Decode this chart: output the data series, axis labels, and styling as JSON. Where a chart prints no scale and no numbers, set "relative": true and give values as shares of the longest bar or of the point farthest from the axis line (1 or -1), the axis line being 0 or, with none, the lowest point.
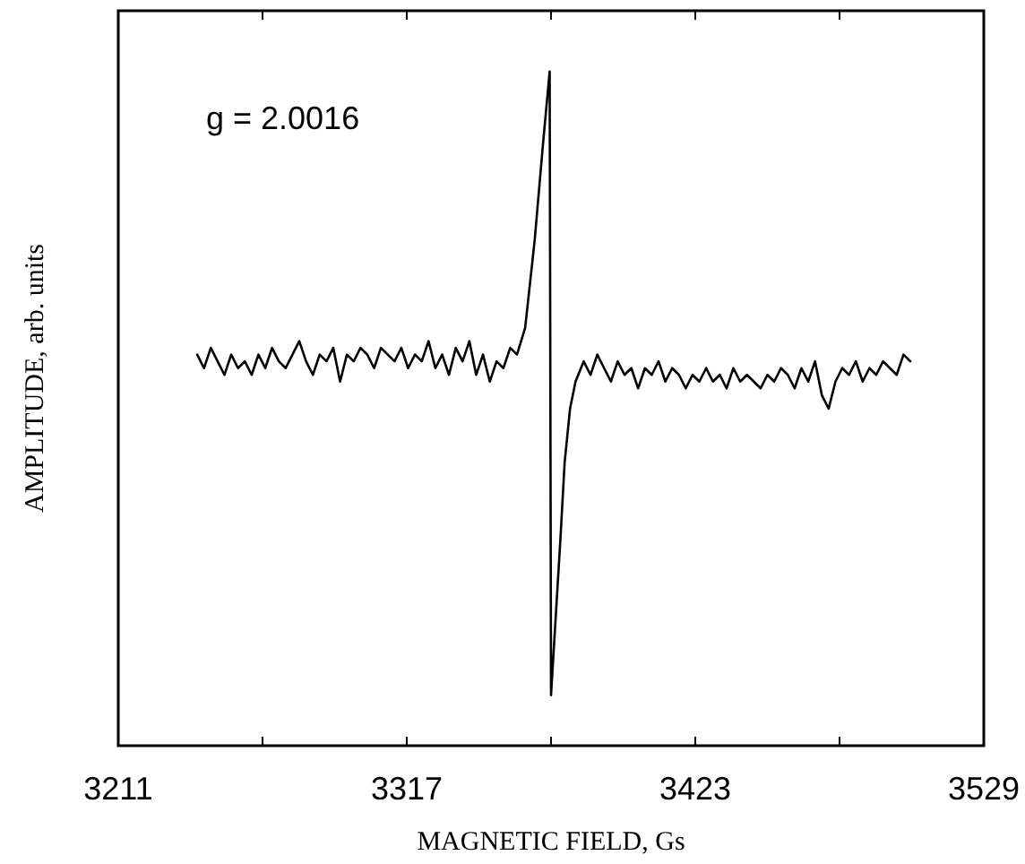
{
  "chart_data": {
    "type": "line",
    "xlabel": "MAGNETIC FIELD, Gs",
    "ylabel": "AMPLITUDE, arb. units",
    "relative": true,
    "xlim": [
      3211,
      3529
    ],
    "xticks": [
      3211,
      {
        "value": 3264,
        "label": null
      },
      3317,
      {
        "value": 3370,
        "label": null
      },
      3423,
      {
        "value": 3476,
        "label": null
      },
      3529
    ],
    "annotations": [
      "g = 2.0016"
    ],
    "series": [
      {
        "color": "#000000",
        "x": [
          3240,
          3242.5,
          3245,
          3247.5,
          3250,
          3252.5,
          3255,
          3257.5,
          3260,
          3262.5,
          3265,
          3267.5,
          3270,
          3272.5,
          3275,
          3277.5,
          3280,
          3282.5,
          3285,
          3287.5,
          3290,
          3292.5,
          3295,
          3297.5,
          3300,
          3302.5,
          3305,
          3307.5,
          3310,
          3312.5,
          3315,
          3317.5,
          3320,
          3322.5,
          3325,
          3327.5,
          3330,
          3332.5,
          3335,
          3337.5,
          3340,
          3342.5,
          3345,
          3347.5,
          3350,
          3352.5,
          3355,
          3357.5,
          3360.5,
          3364,
          3367,
          3369.5,
          3370,
          3373.5,
          3375,
          3376,
          3377,
          3379,
          3382,
          3384.5,
          3387,
          3389.5,
          3392,
          3394.5,
          3397,
          3399.5,
          3402,
          3404.5,
          3407,
          3409.5,
          3412,
          3414.5,
          3417,
          3419.5,
          3422,
          3424.5,
          3427,
          3429.5,
          3432,
          3434.5,
          3437,
          3439.5,
          3442,
          3444.5,
          3447,
          3449.5,
          3452,
          3454.5,
          3457,
          3459.5,
          3462,
          3464.5,
          3467,
          3469.5,
          3472,
          3474.5,
          3477,
          3479.5,
          3482,
          3484.5,
          3487,
          3489.5,
          3492,
          3494.5,
          3497,
          3499.5,
          3502
        ],
        "values": [
          0.58,
          0.56,
          0.59,
          0.57,
          0.55,
          0.58,
          0.56,
          0.57,
          0.55,
          0.58,
          0.56,
          0.59,
          0.57,
          0.56,
          0.58,
          0.6,
          0.57,
          0.55,
          0.58,
          0.57,
          0.59,
          0.54,
          0.58,
          0.57,
          0.59,
          0.58,
          0.56,
          0.59,
          0.58,
          0.57,
          0.59,
          0.56,
          0.58,
          0.57,
          0.6,
          0.56,
          0.58,
          0.55,
          0.59,
          0.57,
          0.6,
          0.55,
          0.58,
          0.54,
          0.57,
          0.56,
          0.59,
          0.58,
          0.62,
          0.75,
          0.89,
          1.0,
          0.075,
          0.31,
          0.42,
          0.46,
          0.5,
          0.54,
          0.57,
          0.55,
          0.58,
          0.56,
          0.54,
          0.57,
          0.55,
          0.56,
          0.53,
          0.56,
          0.55,
          0.57,
          0.54,
          0.56,
          0.55,
          0.53,
          0.55,
          0.54,
          0.56,
          0.54,
          0.55,
          0.53,
          0.56,
          0.54,
          0.55,
          0.54,
          0.53,
          0.55,
          0.54,
          0.56,
          0.55,
          0.53,
          0.56,
          0.54,
          0.57,
          0.52,
          0.5,
          0.54,
          0.56,
          0.55,
          0.57,
          0.54,
          0.56,
          0.55,
          0.57,
          0.56,
          0.55,
          0.58,
          0.57
        ]
      }
    ]
  }
}
